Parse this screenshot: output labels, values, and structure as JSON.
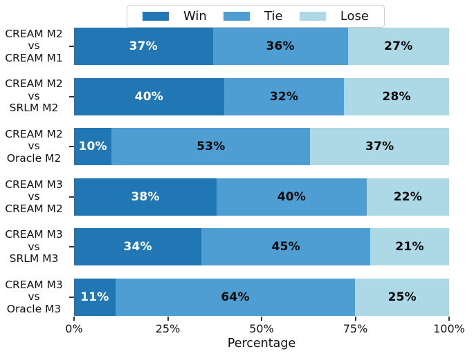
{
  "chart_data": {
    "type": "bar",
    "orientation": "horizontal-stacked",
    "title": "",
    "xlabel": "Percentage",
    "ylabel": "",
    "xlim": [
      0,
      100
    ],
    "x_ticks": [
      {
        "value": 0,
        "label": "0%"
      },
      {
        "value": 25,
        "label": "25%"
      },
      {
        "value": 50,
        "label": "50%"
      },
      {
        "value": 75,
        "label": "75%"
      },
      {
        "value": 100,
        "label": "100%"
      }
    ],
    "grid": false,
    "legend": {
      "position": "top-center",
      "entries": [
        "Win",
        "Tie",
        "Lose"
      ]
    },
    "categories": [
      {
        "lines": [
          "CREAM M2",
          "vs",
          "CREAM M1"
        ]
      },
      {
        "lines": [
          "CREAM M2",
          "vs",
          "SRLM M2"
        ]
      },
      {
        "lines": [
          "CREAM M2",
          "vs",
          "Oracle M2"
        ]
      },
      {
        "lines": [
          "CREAM M3",
          "vs",
          "CREAM M2"
        ]
      },
      {
        "lines": [
          "CREAM M3",
          "vs",
          "SRLM M3"
        ]
      },
      {
        "lines": [
          "CREAM M3",
          "vs",
          "Oracle M3"
        ]
      }
    ],
    "series": [
      {
        "name": "Win",
        "color": "#2077b4",
        "label_color": "#ffffff",
        "values": [
          37,
          40,
          10,
          38,
          34,
          11
        ]
      },
      {
        "name": "Tie",
        "color": "#4f9ed3",
        "label_color": "#0a0a0a",
        "values": [
          36,
          32,
          53,
          40,
          45,
          64
        ]
      },
      {
        "name": "Lose",
        "color": "#add8e6",
        "label_color": "#0a0a0a",
        "values": [
          27,
          28,
          37,
          22,
          21,
          25
        ]
      }
    ],
    "value_suffix": "%"
  },
  "colors": {
    "background": "#ffffff",
    "tick": "#333333",
    "legend_border": "#cccccc"
  }
}
